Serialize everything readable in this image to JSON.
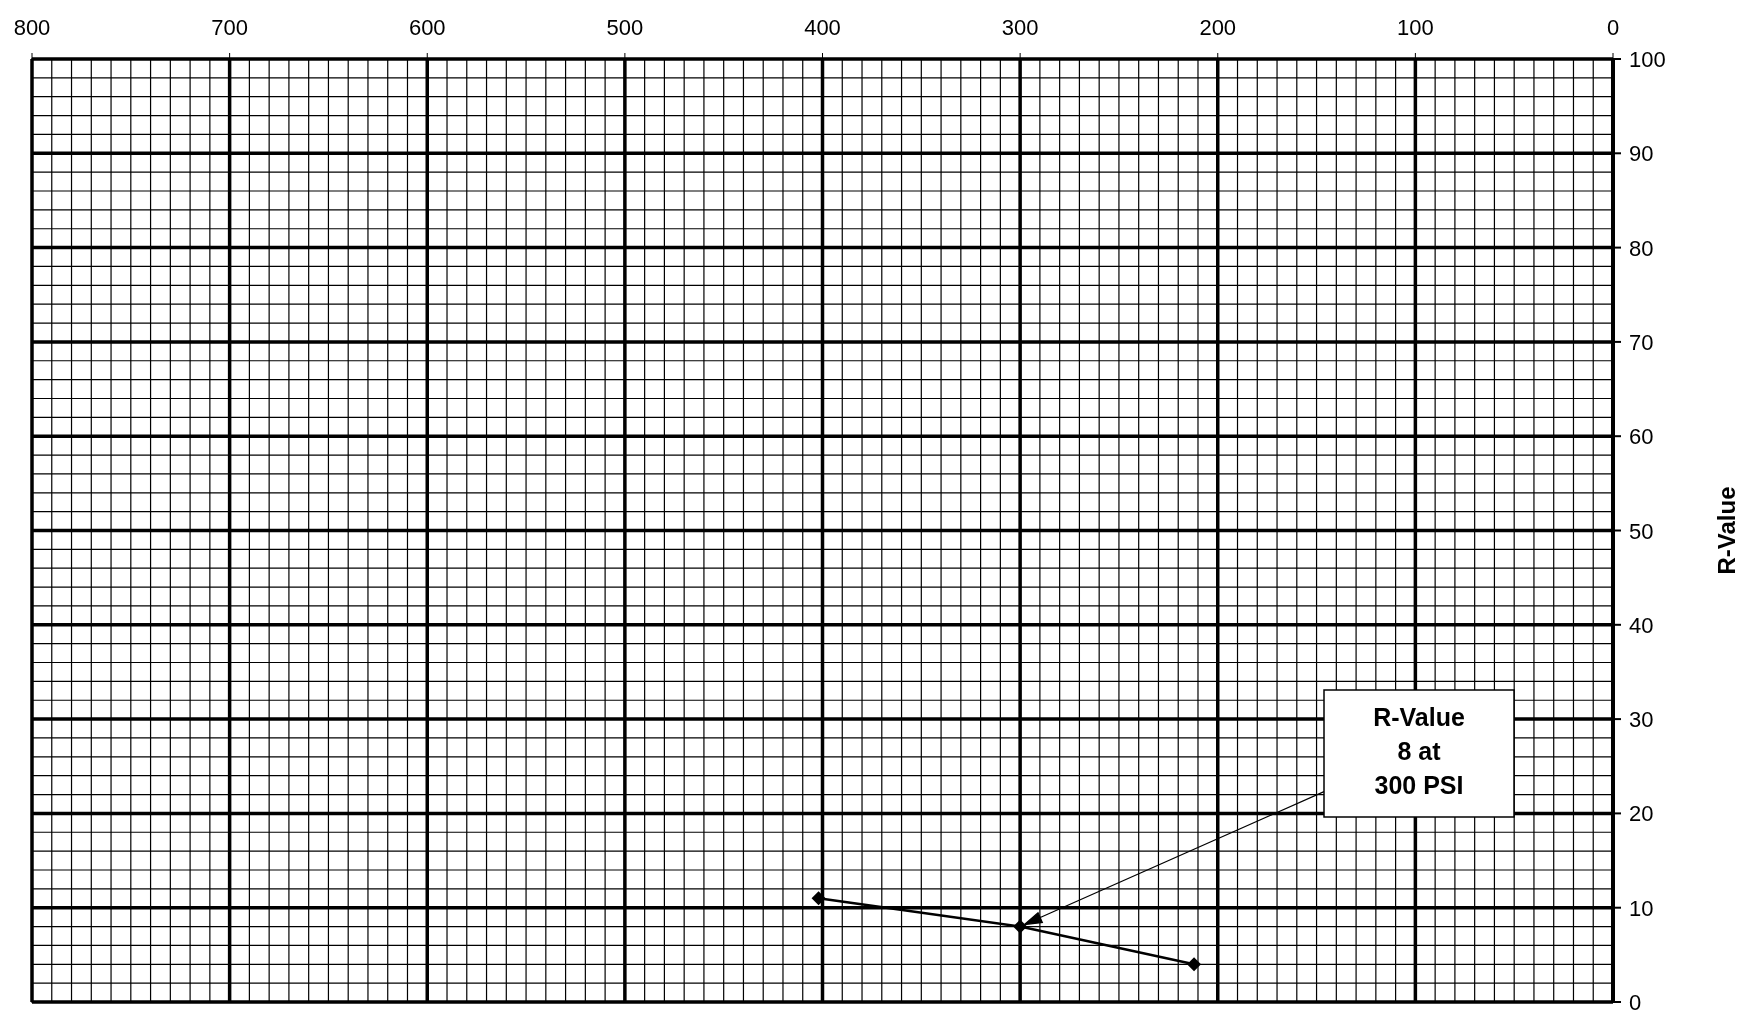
{
  "chart_data": {
    "type": "line",
    "ylabel": "R-Value",
    "x": [
      402,
      300,
      212
    ],
    "series": [
      {
        "color": "#000000",
        "values": [
          11,
          8,
          4
        ]
      }
    ],
    "xlim": [
      800,
      0
    ],
    "ylim": [
      0,
      100
    ],
    "xticks": [
      800,
      {
        "value": 790,
        "label": null
      },
      {
        "value": 780,
        "label": null
      },
      {
        "value": 770,
        "label": null
      },
      {
        "value": 760,
        "label": null
      },
      {
        "value": 750,
        "label": null
      },
      {
        "value": 740,
        "label": null
      },
      {
        "value": 730,
        "label": null
      },
      {
        "value": 720,
        "label": null
      },
      {
        "value": 710,
        "label": null
      },
      700,
      {
        "value": 690,
        "label": null
      },
      {
        "value": 680,
        "label": null
      },
      {
        "value": 670,
        "label": null
      },
      {
        "value": 660,
        "label": null
      },
      {
        "value": 650,
        "label": null
      },
      {
        "value": 640,
        "label": null
      },
      {
        "value": 630,
        "label": null
      },
      {
        "value": 620,
        "label": null
      },
      {
        "value": 610,
        "label": null
      },
      600,
      {
        "value": 590,
        "label": null
      },
      {
        "value": 580,
        "label": null
      },
      {
        "value": 570,
        "label": null
      },
      {
        "value": 560,
        "label": null
      },
      {
        "value": 550,
        "label": null
      },
      {
        "value": 540,
        "label": null
      },
      {
        "value": 530,
        "label": null
      },
      {
        "value": 520,
        "label": null
      },
      {
        "value": 510,
        "label": null
      },
      500,
      {
        "value": 490,
        "label": null
      },
      {
        "value": 480,
        "label": null
      },
      {
        "value": 470,
        "label": null
      },
      {
        "value": 460,
        "label": null
      },
      {
        "value": 450,
        "label": null
      },
      {
        "value": 440,
        "label": null
      },
      {
        "value": 430,
        "label": null
      },
      {
        "value": 420,
        "label": null
      },
      {
        "value": 410,
        "label": null
      },
      400,
      {
        "value": 390,
        "label": null
      },
      {
        "value": 380,
        "label": null
      },
      {
        "value": 370,
        "label": null
      },
      {
        "value": 360,
        "label": null
      },
      {
        "value": 350,
        "label": null
      },
      {
        "value": 340,
        "label": null
      },
      {
        "value": 330,
        "label": null
      },
      {
        "value": 320,
        "label": null
      },
      {
        "value": 310,
        "label": null
      },
      300,
      {
        "value": 290,
        "label": null
      },
      {
        "value": 280,
        "label": null
      },
      {
        "value": 270,
        "label": null
      },
      {
        "value": 260,
        "label": null
      },
      {
        "value": 250,
        "label": null
      },
      {
        "value": 240,
        "label": null
      },
      {
        "value": 230,
        "label": null
      },
      {
        "value": 220,
        "label": null
      },
      {
        "value": 210,
        "label": null
      },
      200,
      {
        "value": 190,
        "label": null
      },
      {
        "value": 180,
        "label": null
      },
      {
        "value": 170,
        "label": null
      },
      {
        "value": 160,
        "label": null
      },
      {
        "value": 150,
        "label": null
      },
      {
        "value": 140,
        "label": null
      },
      {
        "value": 130,
        "label": null
      },
      {
        "value": 120,
        "label": null
      },
      {
        "value": 110,
        "label": null
      },
      100,
      {
        "value": 90,
        "label": null
      },
      {
        "value": 80,
        "label": null
      },
      {
        "value": 70,
        "label": null
      },
      {
        "value": 60,
        "label": null
      },
      {
        "value": 50,
        "label": null
      },
      {
        "value": 40,
        "label": null
      },
      {
        "value": 30,
        "label": null
      },
      {
        "value": 20,
        "label": null
      },
      {
        "value": 10,
        "label": null
      },
      0
    ],
    "yticks": [
      0,
      {
        "value": 2,
        "label": null
      },
      {
        "value": 4,
        "label": null
      },
      {
        "value": 6,
        "label": null
      },
      {
        "value": 8,
        "label": null
      },
      10,
      {
        "value": 12,
        "label": null
      },
      {
        "value": 14,
        "label": null
      },
      {
        "value": 16,
        "label": null
      },
      {
        "value": 18,
        "label": null
      },
      20,
      {
        "value": 22,
        "label": null
      },
      {
        "value": 24,
        "label": null
      },
      {
        "value": 26,
        "label": null
      },
      {
        "value": 28,
        "label": null
      },
      30,
      {
        "value": 32,
        "label": null
      },
      {
        "value": 34,
        "label": null
      },
      {
        "value": 36,
        "label": null
      },
      {
        "value": 38,
        "label": null
      },
      40,
      {
        "value": 42,
        "label": null
      },
      {
        "value": 44,
        "label": null
      },
      {
        "value": 46,
        "label": null
      },
      {
        "value": 48,
        "label": null
      },
      50,
      {
        "value": 52,
        "label": null
      },
      {
        "value": 54,
        "label": null
      },
      {
        "value": 56,
        "label": null
      },
      {
        "value": 58,
        "label": null
      },
      60,
      {
        "value": 62,
        "label": null
      },
      {
        "value": 64,
        "label": null
      },
      {
        "value": 66,
        "label": null
      },
      {
        "value": 68,
        "label": null
      },
      70,
      {
        "value": 72,
        "label": null
      },
      {
        "value": 74,
        "label": null
      },
      {
        "value": 76,
        "label": null
      },
      {
        "value": 78,
        "label": null
      },
      80,
      {
        "value": 82,
        "label": null
      },
      {
        "value": 84,
        "label": null
      },
      {
        "value": 86,
        "label": null
      },
      {
        "value": 88,
        "label": null
      },
      90,
      {
        "value": 92,
        "label": null
      },
      {
        "value": 94,
        "label": null
      },
      {
        "value": 96,
        "label": null
      },
      {
        "value": 98,
        "label": null
      },
      100
    ],
    "grid": true,
    "marker": "diamond",
    "line_style": "solid",
    "annotations": [
      "R-Value\n8 at\n300 PSI"
    ]
  }
}
